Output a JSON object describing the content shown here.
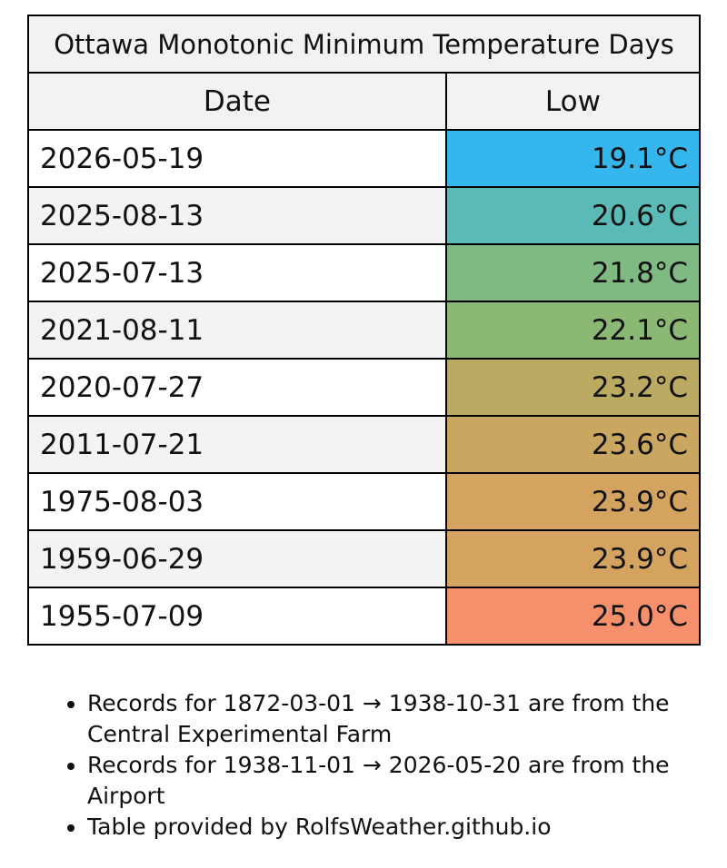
{
  "table": {
    "title": "Ottawa Monotonic Minimum Temperature Days",
    "headers": {
      "date": "Date",
      "low": "Low"
    },
    "rows": [
      {
        "date": "2026-05-19",
        "low": "19.1°C",
        "color": "#35b6ec"
      },
      {
        "date": "2025-08-13",
        "low": "20.6°C",
        "color": "#5bbab5"
      },
      {
        "date": "2025-07-13",
        "low": "21.8°C",
        "color": "#7eba82"
      },
      {
        "date": "2021-08-11",
        "low": "22.1°C",
        "color": "#8bb874"
      },
      {
        "date": "2020-07-27",
        "low": "23.2°C",
        "color": "#bbab62"
      },
      {
        "date": "2011-07-21",
        "low": "23.6°C",
        "color": "#c9a760"
      },
      {
        "date": "1975-08-03",
        "low": "23.9°C",
        "color": "#d4a35f"
      },
      {
        "date": "1959-06-29",
        "low": "23.9°C",
        "color": "#d4a35f"
      },
      {
        "date": "1955-07-09",
        "low": "25.0°C",
        "color": "#f58f6c"
      }
    ]
  },
  "notes": [
    "Records for 1872-03-01 → 1938-10-31 are from the Central Experimental Farm",
    "Records for 1938-11-01 → 2026-05-20 are from the Airport",
    "Table provided by RolfsWeather.github.io"
  ]
}
